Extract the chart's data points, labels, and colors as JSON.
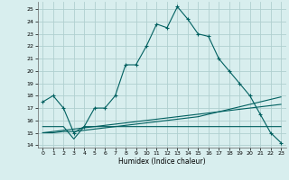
{
  "xlabel": "Humidex (Indice chaleur)",
  "bg_color": "#d8eeee",
  "grid_color": "#b0d0d0",
  "line_color": "#006060",
  "xlim": [
    -0.5,
    23.5
  ],
  "ylim": [
    13.8,
    25.6
  ],
  "yticks": [
    14,
    15,
    16,
    17,
    18,
    19,
    20,
    21,
    22,
    23,
    24,
    25
  ],
  "xticks": [
    0,
    1,
    2,
    3,
    4,
    5,
    6,
    7,
    8,
    9,
    10,
    11,
    12,
    13,
    14,
    15,
    16,
    17,
    18,
    19,
    20,
    21,
    22,
    23
  ],
  "series1": [
    17.5,
    18.0,
    17.0,
    15.0,
    15.5,
    17.0,
    17.0,
    18.0,
    20.5,
    20.5,
    22.0,
    23.8,
    23.5,
    25.2,
    24.2,
    23.0,
    22.8,
    21.0,
    20.0,
    19.0,
    18.0,
    16.5,
    15.0,
    14.2
  ],
  "series2": [
    15.5,
    15.5,
    15.5,
    14.5,
    15.5,
    15.5,
    15.5,
    15.5,
    15.5,
    15.5,
    15.5,
    15.5,
    15.5,
    15.5,
    15.5,
    15.5,
    15.5,
    15.5,
    15.5,
    15.5,
    15.5,
    15.5,
    15.5,
    15.5
  ],
  "series3": [
    15.0,
    15.1,
    15.2,
    15.3,
    15.4,
    15.5,
    15.6,
    15.7,
    15.8,
    15.9,
    16.0,
    16.1,
    16.2,
    16.3,
    16.4,
    16.5,
    16.6,
    16.7,
    16.8,
    16.9,
    17.0,
    17.1,
    17.2,
    17.3
  ],
  "series4": [
    15.0,
    15.0,
    15.1,
    15.1,
    15.2,
    15.3,
    15.4,
    15.5,
    15.6,
    15.7,
    15.8,
    15.9,
    16.0,
    16.1,
    16.2,
    16.3,
    16.5,
    16.7,
    16.9,
    17.1,
    17.3,
    17.5,
    17.7,
    17.9
  ]
}
